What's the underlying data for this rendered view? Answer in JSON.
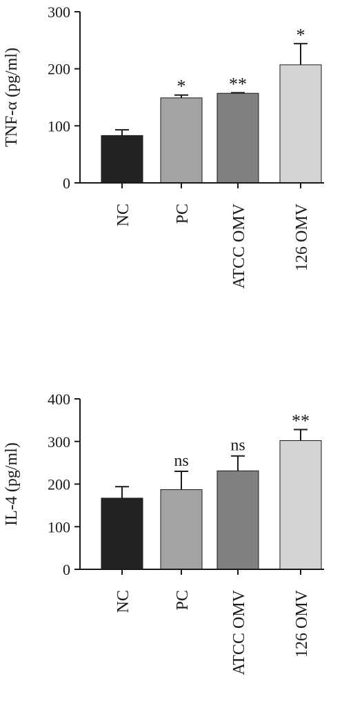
{
  "chart_data": [
    {
      "type": "bar",
      "title": "",
      "xlabel": "",
      "ylabel": "TNF-α (pg/ml)",
      "ylim": [
        0,
        300
      ],
      "yticks": [
        0,
        100,
        200,
        300
      ],
      "ytick_labels": [
        "0",
        "100",
        "200",
        "300"
      ],
      "categories": [
        "NC",
        "PC",
        "ATCC OMV",
        "126 OMV"
      ],
      "values": [
        83,
        149,
        157,
        207
      ],
      "errors": [
        10,
        5,
        1,
        37
      ],
      "annotations": [
        "",
        "*",
        "**",
        "*"
      ],
      "colors": [
        "#232323",
        "#a3a3a3",
        "#808080",
        "#d4d4d4"
      ],
      "grid": false,
      "legend": "none"
    },
    {
      "type": "bar",
      "title": "",
      "xlabel": "",
      "ylabel": "IL-4 (pg/ml)",
      "ylim": [
        0,
        400
      ],
      "yticks": [
        0,
        100,
        200,
        300,
        400
      ],
      "ytick_labels": [
        "0",
        "100",
        "200",
        "300",
        "400"
      ],
      "categories": [
        "NC",
        "PC",
        "ATCC OMV",
        "126 OMV"
      ],
      "values": [
        167,
        187,
        231,
        302
      ],
      "errors": [
        27,
        43,
        35,
        26
      ],
      "annotations": [
        "",
        "ns",
        "ns",
        "**"
      ],
      "colors": [
        "#232323",
        "#a3a3a3",
        "#808080",
        "#d4d4d4"
      ],
      "grid": false,
      "legend": "none"
    }
  ]
}
